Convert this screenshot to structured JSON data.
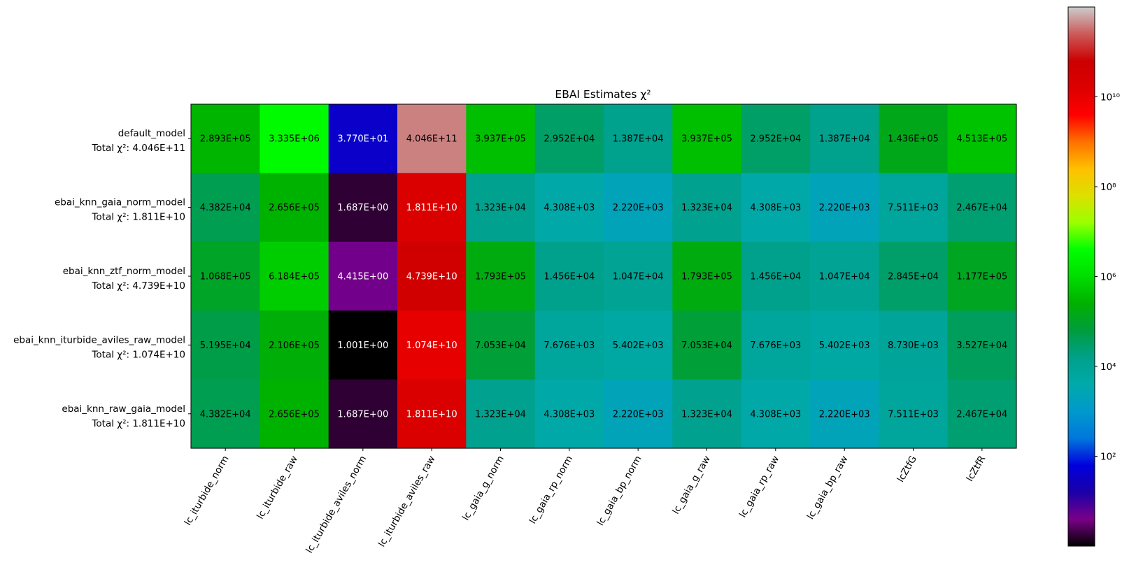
{
  "chart_data": {
    "type": "heatmap",
    "title": "EBAI Estimates χ²",
    "colormap": "nipy_spectral",
    "color_scale": "log",
    "color_range": [
      1,
      1000000000000.0
    ],
    "x_tick_labels": [
      "lc_iturbide_norm",
      "lc_iturbide_raw",
      "lc_iturbide_aviles_norm",
      "lc_iturbide_aviles_raw",
      "lc_gaia_g_norm",
      "lc_gaia_rp_norm",
      "lc_gaia_bp_norm",
      "lc_gaia_g_raw",
      "lc_gaia_rp_raw",
      "lc_gaia_bp_raw",
      "lcZtfG",
      "lcZtfR"
    ],
    "rows": [
      {
        "model": "default_model",
        "total_label": "Total χ²: 4.046E+11",
        "values": [
          289300.0,
          3335000.0,
          37.7,
          404600000000.0,
          393700.0,
          29520.0,
          13870.0,
          393700.0,
          29520.0,
          13870.0,
          143600.0,
          451300.0
        ],
        "labels": [
          "2.893E+05",
          "3.335E+06",
          "3.770E+01",
          "4.046E+11",
          "3.937E+05",
          "2.952E+04",
          "1.387E+04",
          "3.937E+05",
          "2.952E+04",
          "1.387E+04",
          "1.436E+05",
          "4.513E+05"
        ]
      },
      {
        "model": "ebai_knn_gaia_norm_model",
        "total_label": "Total χ²: 1.811E+10",
        "values": [
          43820.0,
          265600.0,
          1.687,
          18110000000.0,
          13230.0,
          4308.0,
          2220.0,
          13230.0,
          4308.0,
          2220.0,
          7511.0,
          24670.0
        ],
        "labels": [
          "4.382E+04",
          "2.656E+05",
          "1.687E+00",
          "1.811E+10",
          "1.323E+04",
          "4.308E+03",
          "2.220E+03",
          "1.323E+04",
          "4.308E+03",
          "2.220E+03",
          "7.511E+03",
          "2.467E+04"
        ]
      },
      {
        "model": "ebai_knn_ztf_norm_model",
        "total_label": "Total χ²: 4.739E+10",
        "values": [
          106800.0,
          618400.0,
          4.415,
          47390000000.0,
          179300.0,
          14560.0,
          10470.0,
          179300.0,
          14560.0,
          10470.0,
          28450.0,
          117700.0
        ],
        "labels": [
          "1.068E+05",
          "6.184E+05",
          "4.415E+00",
          "4.739E+10",
          "1.793E+05",
          "1.456E+04",
          "1.047E+04",
          "1.793E+05",
          "1.456E+04",
          "1.047E+04",
          "2.845E+04",
          "1.177E+05"
        ]
      },
      {
        "model": "ebai_knn_iturbide_aviles_raw_model",
        "total_label": "Total χ²: 1.074E+10",
        "values": [
          51950.0,
          210600.0,
          1.001,
          10740000000.0,
          70530.0,
          7676.0,
          5402.0,
          70530.0,
          7676.0,
          5402.0,
          8730.0,
          35270.0
        ],
        "labels": [
          "5.195E+04",
          "2.106E+05",
          "1.001E+00",
          "1.074E+10",
          "7.053E+04",
          "7.676E+03",
          "5.402E+03",
          "7.053E+04",
          "7.676E+03",
          "5.402E+03",
          "8.730E+03",
          "3.527E+04"
        ]
      },
      {
        "model": "ebai_knn_raw_gaia_model",
        "total_label": "Total χ²: 1.811E+10",
        "values": [
          43820.0,
          265600.0,
          1.687,
          18110000000.0,
          13230.0,
          4308.0,
          2220.0,
          13230.0,
          4308.0,
          2220.0,
          7511.0,
          24670.0
        ],
        "labels": [
          "4.382E+04",
          "2.656E+05",
          "1.687E+00",
          "1.811E+10",
          "1.323E+04",
          "4.308E+03",
          "2.220E+03",
          "1.323E+04",
          "4.308E+03",
          "2.220E+03",
          "7.511E+03",
          "2.467E+04"
        ]
      }
    ],
    "colorbar": {
      "ticks": [
        {
          "value": 100,
          "label": "10²"
        },
        {
          "value": 10000,
          "label": "10⁴"
        },
        {
          "value": 1000000,
          "label": "10⁶"
        },
        {
          "value": 100000000,
          "label": "10⁸"
        },
        {
          "value": 10000000000,
          "label": "10¹⁰"
        }
      ]
    },
    "colors": {
      "text_dark": "#000000",
      "text_light": "#ffffff",
      "gradient": [
        "#000000",
        "#7a0088",
        "#1a00a8",
        "#0000dd",
        "#0077dd",
        "#0099cc",
        "#00aaaa",
        "#00a08a",
        "#009d3d",
        "#00b000",
        "#00dd00",
        "#00ff00",
        "#9aff00",
        "#dde000",
        "#ffc000",
        "#ff7000",
        "#ff0000",
        "#dd0000",
        "#cc0000",
        "#cc5a5a",
        "#cccccc"
      ]
    }
  }
}
